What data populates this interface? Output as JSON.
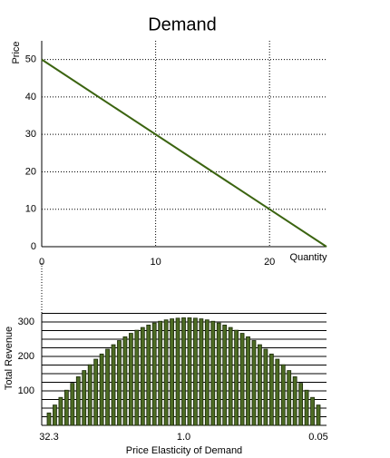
{
  "chart_data": [
    {
      "type": "line",
      "title": "Demand",
      "y_label": "Price",
      "x_label": "Quantity",
      "series": [
        {
          "color": "#3b6410",
          "x": [
            0,
            25
          ],
          "values": [
            50,
            0
          ]
        }
      ],
      "xlim": [
        0,
        25
      ],
      "ylim": [
        0,
        55
      ],
      "xticks": [
        0,
        10,
        20
      ],
      "yticks": [
        0,
        10,
        20,
        30,
        40,
        50
      ],
      "grid": true
    },
    {
      "type": "bar",
      "y_label": "Total Revenue",
      "x_label": "Price Elasticity of Demand",
      "color": "#4d6b24",
      "categories": [
        "32.3",
        null,
        null,
        null,
        null,
        null,
        null,
        null,
        null,
        null,
        null,
        null,
        null,
        null,
        null,
        null,
        null,
        null,
        null,
        null,
        null,
        null,
        null,
        "1.0",
        null,
        null,
        null,
        null,
        null,
        null,
        null,
        null,
        null,
        null,
        null,
        null,
        null,
        null,
        null,
        null,
        null,
        null,
        null,
        null,
        null,
        null,
        "0.05"
      ],
      "values": [
        36,
        59,
        81,
        102,
        122,
        141,
        159,
        176,
        192,
        207,
        221,
        234,
        246,
        257,
        267,
        276,
        284,
        291,
        297,
        302,
        306,
        309,
        311,
        312,
        312,
        311,
        309,
        306,
        302,
        297,
        291,
        284,
        276,
        267,
        257,
        246,
        234,
        221,
        207,
        192,
        176,
        159,
        141,
        122,
        102,
        81,
        59
      ],
      "ylim": [
        0,
        325
      ],
      "yticks": [
        100,
        200,
        300
      ],
      "grid_lines": [
        25,
        50,
        75,
        100,
        125,
        150,
        175,
        200,
        225,
        250,
        275,
        300,
        325
      ]
    }
  ]
}
